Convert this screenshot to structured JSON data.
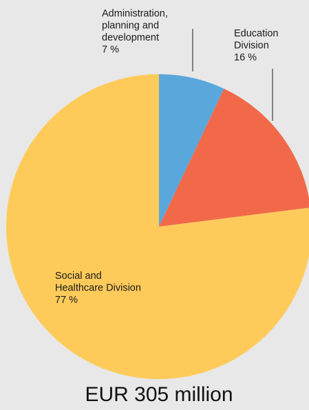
{
  "chart_data": {
    "type": "pie",
    "title": "",
    "total_label": "EUR 305 million",
    "slices": [
      {
        "label_lines": [
          "Administration,",
          "planning and",
          "development"
        ],
        "value": 7,
        "value_label": "7 %",
        "color": "#5aa7dc"
      },
      {
        "label_lines": [
          "Education",
          "Division"
        ],
        "value": 16,
        "value_label": "16 %",
        "color": "#f2694a"
      },
      {
        "label_lines": [
          "Social and",
          "Healthcare Division"
        ],
        "value": 77,
        "value_label": "77 %",
        "color": "#fecb5b"
      }
    ]
  }
}
